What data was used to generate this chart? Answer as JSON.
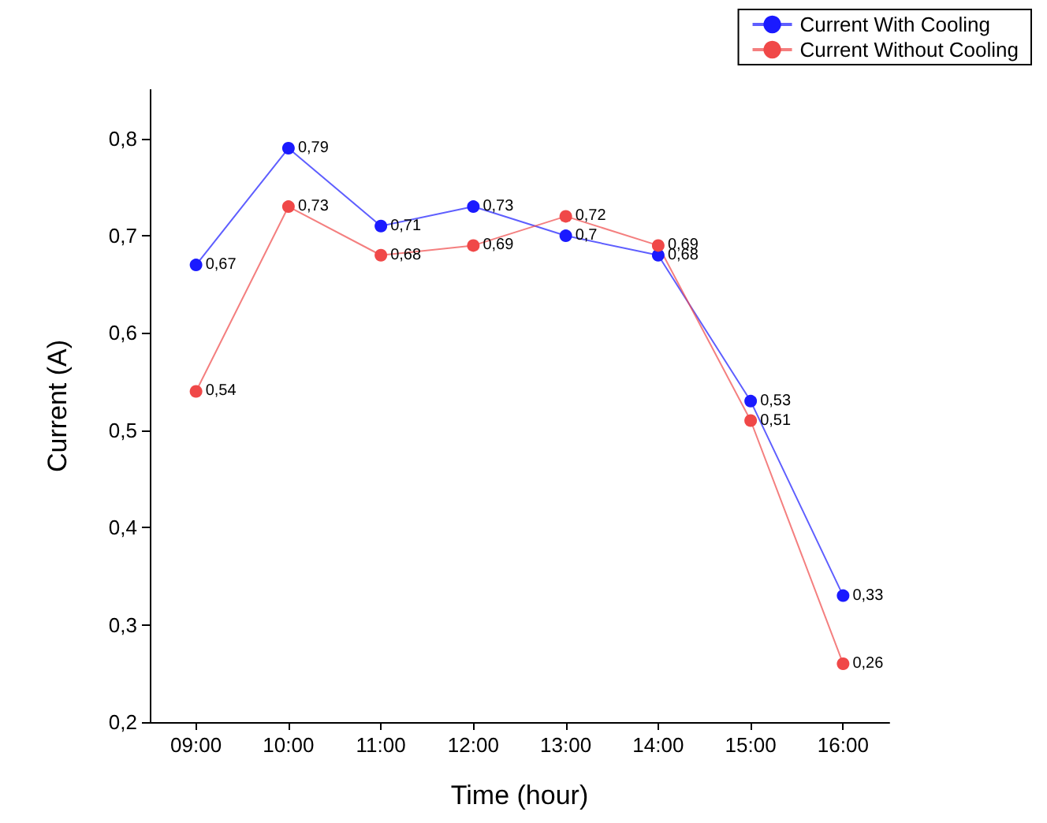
{
  "chart_data": {
    "type": "line",
    "xlabel": "Time (hour)",
    "ylabel": "Current (A)",
    "categories": [
      "09:00",
      "10:00",
      "11:00",
      "12:00",
      "13:00",
      "14:00",
      "15:00",
      "16:00"
    ],
    "series": [
      {
        "name": "Current With Cooling",
        "color": "#1a1aff",
        "values": [
          0.67,
          0.79,
          0.71,
          0.73,
          0.7,
          0.68,
          0.53,
          0.33
        ],
        "value_labels": [
          "0,67",
          "0,79",
          "0,71",
          "0,73",
          "0,7",
          "0,68",
          "0,53",
          "0,33"
        ]
      },
      {
        "name": "Current Without Cooling",
        "color": "#f04848",
        "values": [
          0.54,
          0.73,
          0.68,
          0.69,
          0.72,
          0.69,
          0.51,
          0.26
        ],
        "value_labels": [
          "0,54",
          "0,73",
          "0,68",
          "0,69",
          "0,72",
          "0,69",
          "0,51",
          "0,26"
        ]
      }
    ],
    "ylim": [
      0.2,
      0.85
    ],
    "yticks": [
      {
        "value": 0.2,
        "label": "0,2"
      },
      {
        "value": 0.3,
        "label": "0,3"
      },
      {
        "value": 0.4,
        "label": "0,4"
      },
      {
        "value": 0.5,
        "label": "0,5"
      },
      {
        "value": 0.6,
        "label": "0,6"
      },
      {
        "value": 0.7,
        "label": "0,7"
      },
      {
        "value": 0.8,
        "label": "0,8"
      }
    ],
    "legend": "top right",
    "marker": "circle",
    "line_style": "solid",
    "grid": false
  }
}
